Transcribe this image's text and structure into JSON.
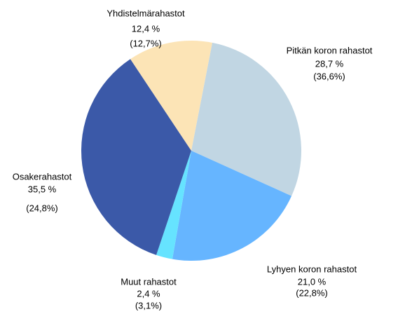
{
  "chart_data": {
    "type": "pie",
    "categories": [
      "Pitkän koron rahastot",
      "Lyhyen koron rahastot",
      "Muut rahastot",
      "Osakerahastot",
      "Yhdistelmärahastot"
    ],
    "values": [
      28.7,
      21.0,
      2.4,
      35.5,
      12.4
    ],
    "value_labels": [
      "28,7 %",
      "21,0 %",
      "2,4 %",
      "35,5 %",
      "12,4 %"
    ],
    "prior_values": [
      36.6,
      22.8,
      3.1,
      24.8,
      12.7
    ],
    "prior_value_labels": [
      "(36,6%)",
      "(22,8%)",
      "(3,1%)",
      "(24,8%)",
      "(12,7%)"
    ],
    "colors": [
      "#c1d6e3",
      "#66b5ff",
      "#66e3ff",
      "#3b59a8",
      "#fce4b6"
    ]
  }
}
